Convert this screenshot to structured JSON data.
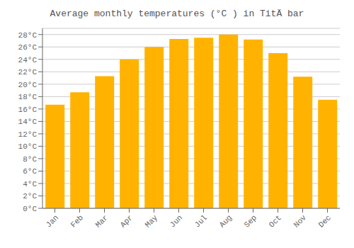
{
  "chart_data": {
    "type": "bar",
    "title": "Average monthly temperatures (°C ) in TitÄ bar",
    "categories": [
      "Jan",
      "Feb",
      "Mar",
      "Apr",
      "May",
      "Jun",
      "Jul",
      "Aug",
      "Sep",
      "Oct",
      "Nov",
      "Dec"
    ],
    "values": [
      16.7,
      18.7,
      21.3,
      24.0,
      26.0,
      27.3,
      27.5,
      28.0,
      27.2,
      25.0,
      21.2,
      17.5
    ],
    "color": "#FFB300",
    "ylim": [
      0,
      29
    ],
    "yticks": [
      {
        "value": 0,
        "label": "0°C"
      },
      {
        "value": 2,
        "label": "2°C"
      },
      {
        "value": 4,
        "label": "4°C"
      },
      {
        "value": 6,
        "label": "6°C"
      },
      {
        "value": 8,
        "label": "8°C"
      },
      {
        "value": 10,
        "label": "10°C"
      },
      {
        "value": 12,
        "label": "12°C"
      },
      {
        "value": 14,
        "label": "14°C"
      },
      {
        "value": 16,
        "label": "16°C"
      },
      {
        "value": 18,
        "label": "18°C"
      },
      {
        "value": 20,
        "label": "20°C"
      },
      {
        "value": 22,
        "label": "22°C"
      },
      {
        "value": 24,
        "label": "24°C"
      },
      {
        "value": 26,
        "label": "26°C"
      },
      {
        "value": 28,
        "label": "28°C"
      }
    ],
    "grid": true
  }
}
